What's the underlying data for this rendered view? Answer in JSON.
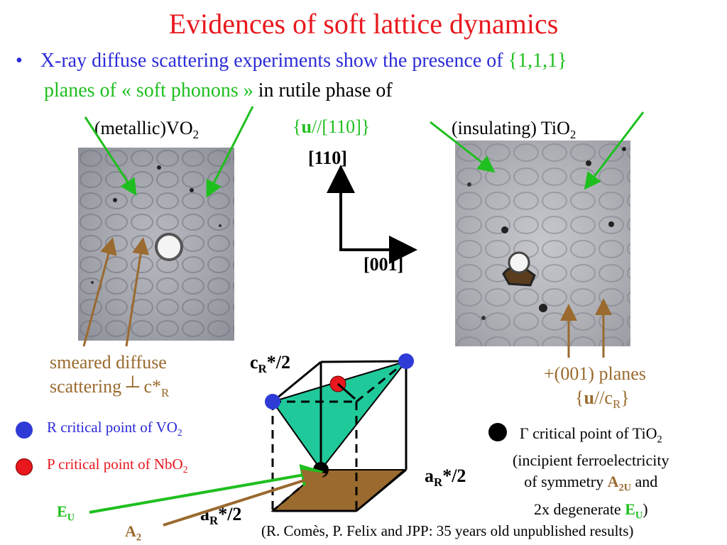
{
  "slide": {
    "title": "Evidences of soft lattice dynamics",
    "bullet": {
      "marker": "•",
      "text_blue": "X-ray diffuse scattering experiments show the presence of ",
      "text_green1": "{1,1,1}",
      "text_green2": "planes of « soft phonons » ",
      "text_black": "in rutile phase of"
    },
    "vo2_label": {
      "pre": "(metallic)VO",
      "sub": "2"
    },
    "tio2_label": {
      "pre": "(insulating) TiO",
      "sub": "2"
    },
    "u_label": {
      "open": "{",
      "u": "u",
      "rest": "//[110]}"
    },
    "axis_110": "[110]",
    "axis_001": "[001]",
    "smeared": {
      "line1": "smeared diffuse",
      "line2": "scattering ┴ c*",
      "sub": "R"
    },
    "planes_001": {
      "line1": "+(001) planes",
      "open": "{",
      "u": "u",
      "mid": "//c",
      "sub": "R",
      "close": "}"
    },
    "legend": {
      "r_point": {
        "text": "R critical  point of VO",
        "sub": "2",
        "color": "#2f3bd6"
      },
      "p_point": {
        "text": "P critical  point of NbO",
        "sub": "2",
        "color": "#e8181e"
      },
      "gamma_point": {
        "line1": "Γ critical  point of TiO",
        "line1_sub": "2",
        "line2": "(incipient ferroelectricity",
        "line3_pre": "of symmetry ",
        "line3_sym": "A",
        "line3_sym_sub": "2U",
        "line3_post": " and",
        "line4_pre": "2x degenerate ",
        "line4_sym": "E",
        "line4_sym_sub": "U",
        "line4_post": ")",
        "color": "#000000"
      }
    },
    "cube_labels": {
      "cR": "c",
      "cR_sub": "R",
      "cR_post": "*/2",
      "aR_right": "a",
      "aR_right_sub": "R",
      "aR_right_post": "*/2",
      "aR_bottom": "a",
      "aR_bottom_sub": "R",
      "aR_bottom_post": "*/2"
    },
    "arrow_labels": {
      "eu": "E",
      "eu_sub": "U",
      "a2": "A",
      "a2_sub": "2"
    },
    "citation": "(R. Comès, P. Felix and JPP: 35 years old unpublished results)",
    "colors": {
      "title": "#e8181e",
      "blue_text": "#2b2bd8",
      "green": "#1fbf1f",
      "brown": "#9a6a2e",
      "teal_face": "#1fc99a",
      "brown_plane": "#9a6a2e"
    }
  }
}
